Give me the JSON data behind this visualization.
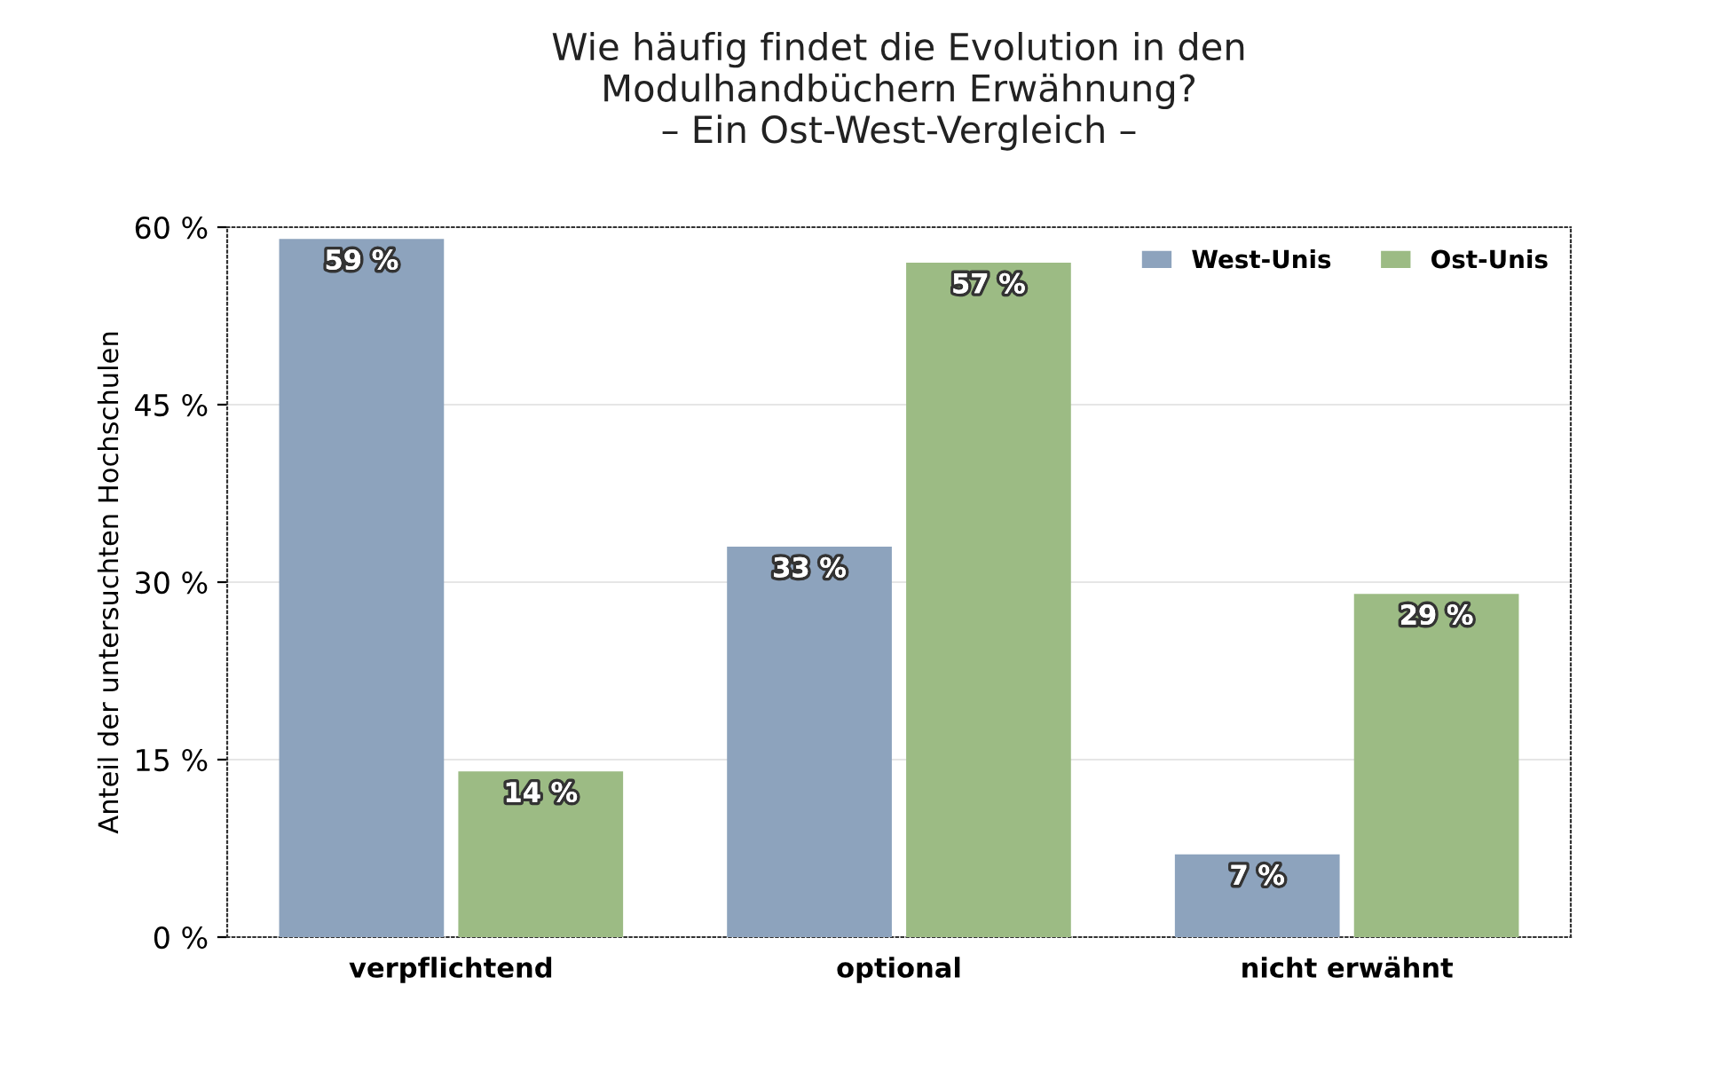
{
  "chart_data": {
    "type": "bar",
    "title": "Wie häufig findet die Evolution in den\nModulhandbüchern Erwähnung?\n– Ein Ost-West-Vergleich –",
    "ylabel": "Anteil der untersuchten Hochschulen",
    "categories": [
      "verpflichtend",
      "optional",
      "nicht erwähnt"
    ],
    "series": [
      {
        "name": "West-Unis",
        "color": "#8da3bd",
        "values": [
          59,
          33,
          7
        ],
        "value_labels": [
          "59 %",
          "33 %",
          "7 %"
        ]
      },
      {
        "name": "Ost-Unis",
        "color": "#9cbb84",
        "values": [
          14,
          57,
          29
        ],
        "value_labels": [
          "14 %",
          "57 %",
          "29 %"
        ]
      }
    ],
    "ylim": [
      0,
      60
    ],
    "yticks": [
      {
        "value": 0,
        "label": "0 %"
      },
      {
        "value": 15,
        "label": "15 %"
      },
      {
        "value": 30,
        "label": "30 %"
      },
      {
        "value": 45,
        "label": "45 %"
      },
      {
        "value": 60,
        "label": "60 %"
      }
    ],
    "grid": "y",
    "legend": "top right"
  }
}
